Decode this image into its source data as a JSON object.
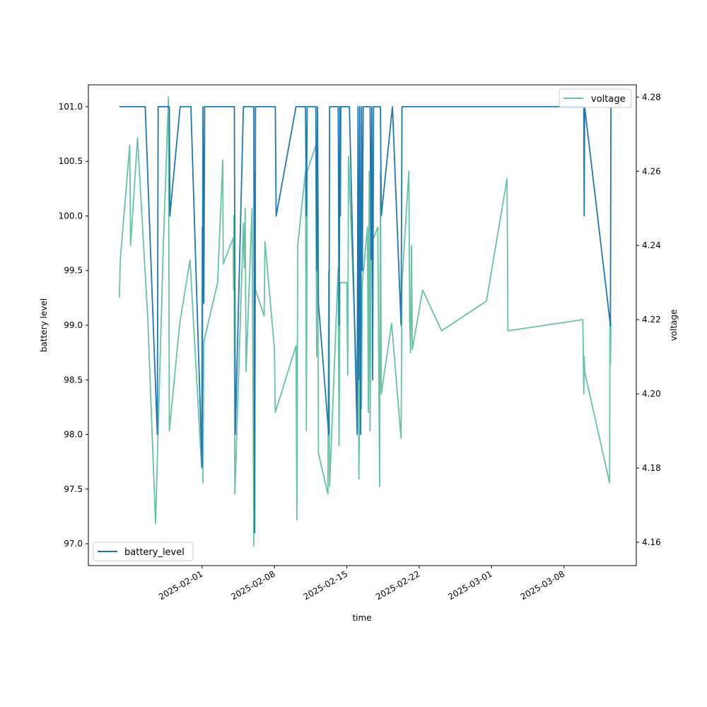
{
  "chart_data": {
    "type": "line",
    "xlabel": "time",
    "ylabel_left": "battery level",
    "ylabel_right": "voltage",
    "xlim": [
      "2025-01-21",
      "2025-03-15"
    ],
    "ylim_left": [
      96.8,
      101.2
    ],
    "ylim_right": [
      4.1537,
      4.2833
    ],
    "x_ticks": [
      "2025-02-01",
      "2025-02-08",
      "2025-02-15",
      "2025-02-22",
      "2025-03-01",
      "2025-03-08"
    ],
    "y_ticks_left": [
      97.0,
      97.5,
      98.0,
      98.5,
      99.0,
      99.5,
      100.0,
      100.5,
      101.0
    ],
    "y_ticks_right": [
      4.16,
      4.18,
      4.2,
      4.22,
      4.24,
      4.26,
      4.28
    ],
    "grid": false,
    "series": [
      {
        "name": "battery_level",
        "axis": "left",
        "color": "#1f77b4",
        "legend_position": "lower-left",
        "points": [
          [
            "2025-01-24T00:00",
            101
          ],
          [
            "2025-01-25T18:00",
            101
          ],
          [
            "2025-01-26T12:00",
            101
          ],
          [
            "2025-01-27T16:00",
            98
          ],
          [
            "2025-01-27T18:00",
            101
          ],
          [
            "2025-01-28T20:00",
            101
          ],
          [
            "2025-01-28T21:00",
            100
          ],
          [
            "2025-01-29T21:00",
            101
          ],
          [
            "2025-01-30T22:00",
            101
          ],
          [
            "2025-02-01T00:00",
            97.7
          ],
          [
            "2025-02-01T02:00",
            101
          ],
          [
            "2025-02-01T04:00",
            99.2
          ],
          [
            "2025-02-01T06:00",
            101
          ],
          [
            "2025-02-04T03:00",
            101
          ],
          [
            "2025-02-04T05:00",
            98
          ],
          [
            "2025-02-05T00:00",
            101
          ],
          [
            "2025-02-06T00:00",
            101
          ],
          [
            "2025-02-06T02:00",
            97.1
          ],
          [
            "2025-02-06T04:00",
            101
          ],
          [
            "2025-02-08T02:00",
            101
          ],
          [
            "2025-02-08T04:00",
            100
          ],
          [
            "2025-02-10T02:00",
            101
          ],
          [
            "2025-02-11T00:00",
            101
          ],
          [
            "2025-02-11T02:00",
            100
          ],
          [
            "2025-02-11T04:00",
            101
          ],
          [
            "2025-02-12T00:00",
            101
          ],
          [
            "2025-02-12T02:00",
            99.5
          ],
          [
            "2025-02-12T04:00",
            101
          ],
          [
            "2025-02-12T06:00",
            99.2
          ],
          [
            "2025-02-13T06:00",
            98
          ],
          [
            "2025-02-13T08:00",
            101
          ],
          [
            "2025-02-14T04:00",
            101
          ],
          [
            "2025-02-14T06:00",
            99
          ],
          [
            "2025-02-14T08:00",
            101
          ],
          [
            "2025-02-14T09:00",
            100
          ],
          [
            "2025-02-14T10:00",
            101
          ],
          [
            "2025-02-15T06:00",
            101
          ],
          [
            "2025-02-16T00:00",
            98
          ],
          [
            "2025-02-16T02:00",
            101
          ],
          [
            "2025-02-16T04:00",
            98.5
          ],
          [
            "2025-02-16T06:00",
            101
          ],
          [
            "2025-02-16T08:00",
            98
          ],
          [
            "2025-02-16T10:00",
            101
          ],
          [
            "2025-02-16T12:00",
            99.5
          ],
          [
            "2025-02-16T14:00",
            101
          ],
          [
            "2025-02-17T06:00",
            101
          ],
          [
            "2025-02-17T08:00",
            99.6
          ],
          [
            "2025-02-17T10:00",
            101
          ],
          [
            "2025-02-17T12:00",
            98.5
          ],
          [
            "2025-02-17T14:00",
            101
          ],
          [
            "2025-02-18T06:00",
            101
          ],
          [
            "2025-02-18T08:00",
            100
          ],
          [
            "2025-02-19T10:00",
            101
          ],
          [
            "2025-02-20T06:00",
            99
          ],
          [
            "2025-02-20T08:00",
            101
          ],
          [
            "2025-03-09T22:00",
            101
          ],
          [
            "2025-03-09T23:00",
            100
          ],
          [
            "2025-03-10T00:00",
            101
          ],
          [
            "2025-03-12T12:00",
            99
          ],
          [
            "2025-03-12T13:00",
            101
          ]
        ]
      },
      {
        "name": "voltage",
        "axis": "right",
        "color": "#66c2a5",
        "legend_position": "upper-right",
        "points": [
          [
            "2025-01-24T00:00",
            4.226
          ],
          [
            "2025-01-24T02:00",
            4.236
          ],
          [
            "2025-01-25T00:00",
            4.267
          ],
          [
            "2025-01-25T02:00",
            4.24
          ],
          [
            "2025-01-25T18:00",
            4.269
          ],
          [
            "2025-01-26T18:00",
            4.22
          ],
          [
            "2025-01-27T12:00",
            4.165
          ],
          [
            "2025-01-28T06:00",
            4.24
          ],
          [
            "2025-01-28T18:00",
            4.28
          ],
          [
            "2025-01-28T20:00",
            4.19
          ],
          [
            "2025-01-29T20:00",
            4.219
          ],
          [
            "2025-01-30T20:00",
            4.236
          ],
          [
            "2025-01-31T23:00",
            4.18
          ],
          [
            "2025-02-01T00:00",
            4.245
          ],
          [
            "2025-02-01T02:00",
            4.176
          ],
          [
            "2025-02-01T04:00",
            4.214
          ],
          [
            "2025-02-02T12:00",
            4.23
          ],
          [
            "2025-02-03T00:00",
            4.263
          ],
          [
            "2025-02-03T01:00",
            4.235
          ],
          [
            "2025-02-04T00:00",
            4.242
          ],
          [
            "2025-02-04T01:00",
            4.228
          ],
          [
            "2025-02-04T02:00",
            4.248
          ],
          [
            "2025-02-04T04:00",
            4.173
          ],
          [
            "2025-02-05T00:00",
            4.246
          ],
          [
            "2025-02-05T02:00",
            4.234
          ],
          [
            "2025-02-05T04:00",
            4.25
          ],
          [
            "2025-02-05T06:00",
            4.206
          ],
          [
            "2025-02-05T20:00",
            4.25
          ],
          [
            "2025-02-06T00:00",
            4.159
          ],
          [
            "2025-02-06T02:00",
            4.26
          ],
          [
            "2025-02-06T04:00",
            4.228
          ],
          [
            "2025-02-07T00:00",
            4.221
          ],
          [
            "2025-02-07T02:00",
            4.241
          ],
          [
            "2025-02-08T00:00",
            4.212
          ],
          [
            "2025-02-08T02:00",
            4.195
          ],
          [
            "2025-02-10T02:00",
            4.213
          ],
          [
            "2025-02-10T03:00",
            4.19
          ],
          [
            "2025-02-10T04:00",
            4.166
          ],
          [
            "2025-02-10T06:00",
            4.24
          ],
          [
            "2025-02-11T00:00",
            4.26
          ],
          [
            "2025-02-11T02:00",
            4.19
          ],
          [
            "2025-02-11T04:00",
            4.26
          ],
          [
            "2025-02-12T00:00",
            4.267
          ],
          [
            "2025-02-12T02:00",
            4.21
          ],
          [
            "2025-02-12T04:00",
            4.25
          ],
          [
            "2025-02-12T06:00",
            4.184
          ],
          [
            "2025-02-13T04:00",
            4.173
          ],
          [
            "2025-02-13T06:00",
            4.233
          ],
          [
            "2025-02-13T08:00",
            4.175
          ],
          [
            "2025-02-14T04:00",
            4.234
          ],
          [
            "2025-02-14T06:00",
            4.186
          ],
          [
            "2025-02-14T08:00",
            4.23
          ],
          [
            "2025-02-15T00:00",
            4.23
          ],
          [
            "2025-02-15T02:00",
            4.205
          ],
          [
            "2025-02-15T04:00",
            4.264
          ],
          [
            "2025-02-16T00:00",
            4.2
          ],
          [
            "2025-02-16T02:00",
            4.263
          ],
          [
            "2025-02-16T04:00",
            4.177
          ],
          [
            "2025-02-16T06:00",
            4.2
          ],
          [
            "2025-02-16T08:00",
            4.24
          ],
          [
            "2025-02-16T10:00",
            4.196
          ],
          [
            "2025-02-16T12:00",
            4.23
          ],
          [
            "2025-02-17T00:00",
            4.245
          ],
          [
            "2025-02-17T02:00",
            4.195
          ],
          [
            "2025-02-17T04:00",
            4.26
          ],
          [
            "2025-02-17T06:00",
            4.19
          ],
          [
            "2025-02-17T08:00",
            4.24
          ],
          [
            "2025-02-18T00:00",
            4.245
          ],
          [
            "2025-02-18T04:00",
            4.175
          ],
          [
            "2025-02-18T06:00",
            4.26
          ],
          [
            "2025-02-18T08:00",
            4.2
          ],
          [
            "2025-02-19T08:00",
            4.219
          ],
          [
            "2025-02-20T06:00",
            4.188
          ],
          [
            "2025-02-20T08:00",
            4.23
          ],
          [
            "2025-02-21T00:00",
            4.26
          ],
          [
            "2025-02-21T02:00",
            4.22
          ],
          [
            "2025-02-21T04:00",
            4.211
          ],
          [
            "2025-02-21T06:00",
            4.24
          ],
          [
            "2025-02-21T08:00",
            4.212
          ],
          [
            "2025-02-22T08:00",
            4.228
          ],
          [
            "2025-02-24T04:00",
            4.217
          ],
          [
            "2025-02-28T12:00",
            4.225
          ],
          [
            "2025-03-02T12:00",
            4.258
          ],
          [
            "2025-03-02T14:00",
            4.217
          ],
          [
            "2025-03-09T20:00",
            4.22
          ],
          [
            "2025-03-09T22:00",
            4.2
          ],
          [
            "2025-03-09T23:00",
            4.21
          ],
          [
            "2025-03-10T00:00",
            4.206
          ],
          [
            "2025-03-12T10:00",
            4.176
          ],
          [
            "2025-03-12T11:00",
            4.22
          ],
          [
            "2025-03-12T12:00",
            4.208
          ],
          [
            "2025-03-12T13:00",
            4.219
          ]
        ]
      }
    ]
  }
}
